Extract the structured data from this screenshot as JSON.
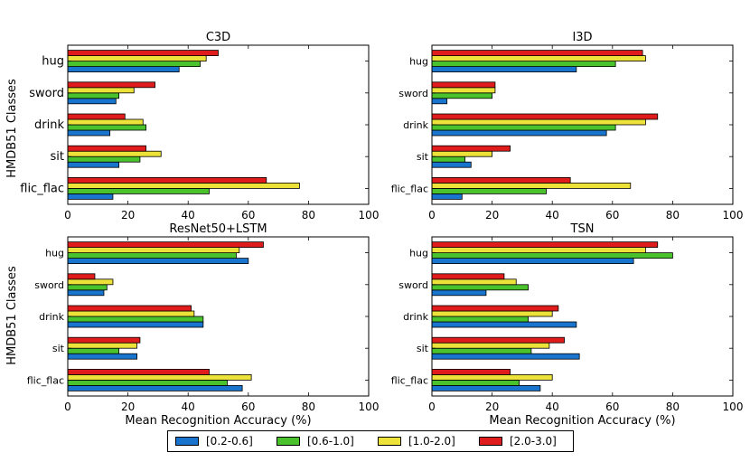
{
  "figure": {
    "ylabel": "HMDB51 Classes",
    "xlabel": "Mean Recognition Accuracy (%)"
  },
  "legend": [
    {
      "label": "[0.2-0.6]",
      "color": "#1874cd"
    },
    {
      "label": "[0.6-1.0]",
      "color": "#4ac22e"
    },
    {
      "label": "[1.0-2.0]",
      "color": "#ece23a"
    },
    {
      "label": "[2.0-3.0]",
      "color": "#e01b1b"
    }
  ],
  "chart_data": [
    {
      "type": "bar",
      "orientation": "horizontal",
      "title": "C3D",
      "categories": [
        "hug",
        "sword",
        "drink",
        "sit",
        "flic_flac"
      ],
      "xlim": [
        0,
        100
      ],
      "xticks": [
        0,
        20,
        40,
        60,
        80,
        100
      ],
      "xlabel": "",
      "ylabel": "HMDB51 Classes",
      "series": [
        {
          "name": "[0.2-0.6]",
          "values": [
            37,
            16,
            14,
            17,
            15
          ]
        },
        {
          "name": "[0.6-1.0]",
          "values": [
            44,
            17,
            26,
            24,
            47
          ]
        },
        {
          "name": "[1.0-2.0]",
          "values": [
            46,
            22,
            25,
            31,
            77
          ]
        },
        {
          "name": "[2.0-3.0]",
          "values": [
            50,
            29,
            19,
            26,
            66
          ]
        }
      ]
    },
    {
      "type": "bar",
      "orientation": "horizontal",
      "title": "I3D",
      "categories": [
        "hug",
        "sword",
        "drink",
        "sit",
        "flic_flac"
      ],
      "xlim": [
        0,
        100
      ],
      "xticks": [
        0,
        20,
        40,
        60,
        80,
        100
      ],
      "xlabel": "",
      "ylabel": "",
      "series": [
        {
          "name": "[0.2-0.6]",
          "values": [
            48,
            5,
            58,
            13,
            10
          ]
        },
        {
          "name": "[0.6-1.0]",
          "values": [
            61,
            20,
            61,
            11,
            38
          ]
        },
        {
          "name": "[1.0-2.0]",
          "values": [
            71,
            21,
            71,
            20,
            66
          ]
        },
        {
          "name": "[2.0-3.0]",
          "values": [
            70,
            21,
            75,
            26,
            46
          ]
        }
      ]
    },
    {
      "type": "bar",
      "orientation": "horizontal",
      "title": "ResNet50+LSTM",
      "categories": [
        "hug",
        "sword",
        "drink",
        "sit",
        "flic_flac"
      ],
      "xlim": [
        0,
        100
      ],
      "xticks": [
        0,
        20,
        40,
        60,
        80,
        100
      ],
      "xlabel": "Mean Recognition Accuracy (%)",
      "ylabel": "HMDB51 Classes",
      "series": [
        {
          "name": "[0.2-0.6]",
          "values": [
            60,
            12,
            45,
            23,
            58
          ]
        },
        {
          "name": "[0.6-1.0]",
          "values": [
            56,
            13,
            45,
            17,
            53
          ]
        },
        {
          "name": "[1.0-2.0]",
          "values": [
            57,
            15,
            42,
            23,
            61
          ]
        },
        {
          "name": "[2.0-3.0]",
          "values": [
            65,
            9,
            41,
            24,
            47
          ]
        }
      ]
    },
    {
      "type": "bar",
      "orientation": "horizontal",
      "title": "TSN",
      "categories": [
        "hug",
        "sword",
        "drink",
        "sit",
        "flic_flac"
      ],
      "xlim": [
        0,
        100
      ],
      "xticks": [
        0,
        20,
        40,
        60,
        80,
        100
      ],
      "xlabel": "Mean Recognition Accuracy (%)",
      "ylabel": "",
      "series": [
        {
          "name": "[0.2-0.6]",
          "values": [
            67,
            18,
            48,
            49,
            36
          ]
        },
        {
          "name": "[0.6-1.0]",
          "values": [
            80,
            32,
            32,
            33,
            29
          ]
        },
        {
          "name": "[1.0-2.0]",
          "values": [
            71,
            28,
            40,
            39,
            40
          ]
        },
        {
          "name": "[2.0-3.0]",
          "values": [
            75,
            24,
            42,
            44,
            26
          ]
        }
      ]
    }
  ]
}
